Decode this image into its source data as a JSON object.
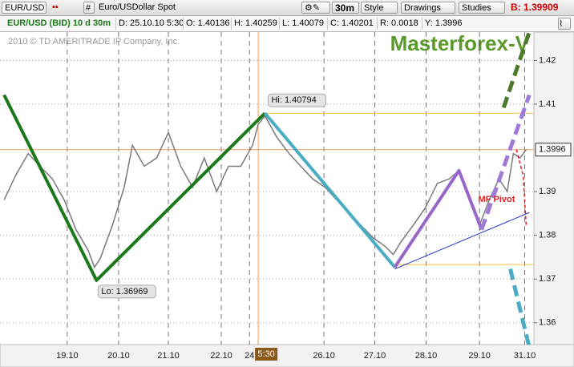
{
  "toolbar": {
    "symbol": "EUR/USD",
    "hash": "#",
    "description": "Euro/USDollar Spot",
    "interval": "30m",
    "style": "Style",
    "drawings": "Drawings",
    "studies": "Studies",
    "bid": "B: 1.39909"
  },
  "info_bar": {
    "title": "EUR/USD (BID) 10 d 30m",
    "date": "D: 25.10.10 5:30",
    "open": "O: 1.40136",
    "high": "H: 1.40259",
    "low": "L: 1.40079",
    "close": "C: 1.40201",
    "range": "R: 0.0018",
    "y": "Y: 1.3996"
  },
  "chart_data": {
    "type": "line",
    "title": "Masterforex-V",
    "watermark": "2010 © TD AMERITRADE IP Company, Inc.",
    "x": [
      0.08,
      0.31,
      0.55,
      0.78,
      1.02,
      1.25,
      1.48,
      1.72,
      1.84,
      1.95,
      2.19,
      2.42,
      2.58,
      2.81,
      3.05,
      3.28,
      3.52,
      3.75,
      3.98,
      4.22,
      4.45,
      4.69,
      4.92,
      5.03,
      5.16,
      5.39,
      5.63,
      5.86,
      6.09,
      6.33,
      6.56,
      6.8,
      7.03,
      7.27,
      7.5,
      7.66,
      7.81,
      8.05,
      8.28,
      8.52,
      8.75,
      8.94,
      9.14,
      9.34,
      9.53,
      9.72,
      9.88,
      10.0,
      10.13,
      10.25
    ],
    "series": [
      {
        "color": "#7a7a7a",
        "values": [
          1.3881,
          1.3938,
          1.3987,
          1.3958,
          1.3929,
          1.3881,
          1.3813,
          1.3765,
          1.3727,
          1.3746,
          1.3823,
          1.391,
          1.4006,
          1.3958,
          1.3977,
          1.4035,
          1.3958,
          1.391,
          1.3977,
          1.39,
          1.3958,
          1.3958,
          1.4006,
          1.4054,
          1.4073,
          1.4025,
          1.3987,
          1.3958,
          1.3929,
          1.391,
          1.3881,
          1.3852,
          1.3823,
          1.3794,
          1.3775,
          1.3756,
          1.3785,
          1.3823,
          1.3862,
          1.3919,
          1.3929,
          1.3948,
          1.3881,
          1.3823,
          1.3881,
          1.3929,
          1.39,
          1.3987,
          1.3977,
          1.3996
        ]
      }
    ],
    "xlim": [
      0,
      10.4
    ],
    "ylim": [
      1.355,
      1.4265
    ],
    "xticks": [
      {
        "value": 1.31,
        "label": "19.10"
      },
      {
        "value": 2.31,
        "label": "20.10"
      },
      {
        "value": 3.28,
        "label": "21.10"
      },
      {
        "value": 4.31,
        "label": "22.10"
      },
      {
        "value": 4.86,
        "label": "24"
      },
      {
        "value": 6.31,
        "label": "26.10"
      },
      {
        "value": 7.3,
        "label": "27.10"
      },
      {
        "value": 8.3,
        "label": "28.10"
      },
      {
        "value": 9.34,
        "label": "29.10"
      },
      {
        "value": 10.22,
        "label": "31.10"
      }
    ],
    "yticks": [
      1.36,
      1.37,
      1.38,
      1.39,
      1.41,
      1.42
    ],
    "grid": true,
    "last_price": 1.3996,
    "crosshair": {
      "x": 5.03,
      "label": "5:30"
    },
    "levels": [
      {
        "color": "#f0c040",
        "x": [
          5.16,
          10.4
        ],
        "y": [
          1.40794,
          1.40794
        ]
      },
      {
        "color": "#f0c040",
        "x": [
          7.69,
          10.4
        ],
        "y": [
          1.3733,
          1.3733
        ]
      }
    ],
    "lines": [
      {
        "color": "#1a7a1a",
        "width": 4,
        "dash": false,
        "x": [
          0.08,
          1.88,
          5.16
        ],
        "y": [
          1.4121,
          1.36969,
          1.40794
        ]
      },
      {
        "color": "#4bacc6",
        "width": 4,
        "dash": false,
        "x": [
          5.16,
          7.69
        ],
        "y": [
          1.40794,
          1.3727
        ]
      },
      {
        "color": "#9966cc",
        "width": 4,
        "dash": false,
        "x": [
          7.69,
          8.94,
          9.38
        ],
        "y": [
          1.3727,
          1.3948,
          1.3813
        ]
      },
      {
        "color": "#2233cc",
        "width": 1,
        "dash": false,
        "x": [
          7.69,
          10.31
        ],
        "y": [
          1.3723,
          1.3852
        ]
      },
      {
        "color": "#a07ad8",
        "width": 5,
        "dash": true,
        "x": [
          9.38,
          10.31
        ],
        "y": [
          1.3813,
          1.4121
        ]
      },
      {
        "color": "#4a7a2a",
        "width": 5,
        "dash": true,
        "x": [
          9.81,
          10.31
        ],
        "y": [
          1.4092,
          1.4265
        ]
      },
      {
        "color": "#4bacc6",
        "width": 5,
        "dash": true,
        "x": [
          9.94,
          10.31
        ],
        "y": [
          1.3723,
          1.3544
        ]
      },
      {
        "color": "#e02020",
        "width": 1.5,
        "dash": true,
        "x": [
          10.06,
          10.19,
          10.25
        ],
        "y": [
          1.3996,
          1.3937,
          1.3823
        ]
      }
    ],
    "annotations": [
      {
        "label": "Hi: 1.40794",
        "x": 5.16,
        "y": 1.40794
      },
      {
        "label": "Lo: 1.36969",
        "x": 1.88,
        "y": 1.36969
      },
      {
        "label": "MF Pivot",
        "x": 9.69,
        "y": 1.3896
      }
    ]
  }
}
